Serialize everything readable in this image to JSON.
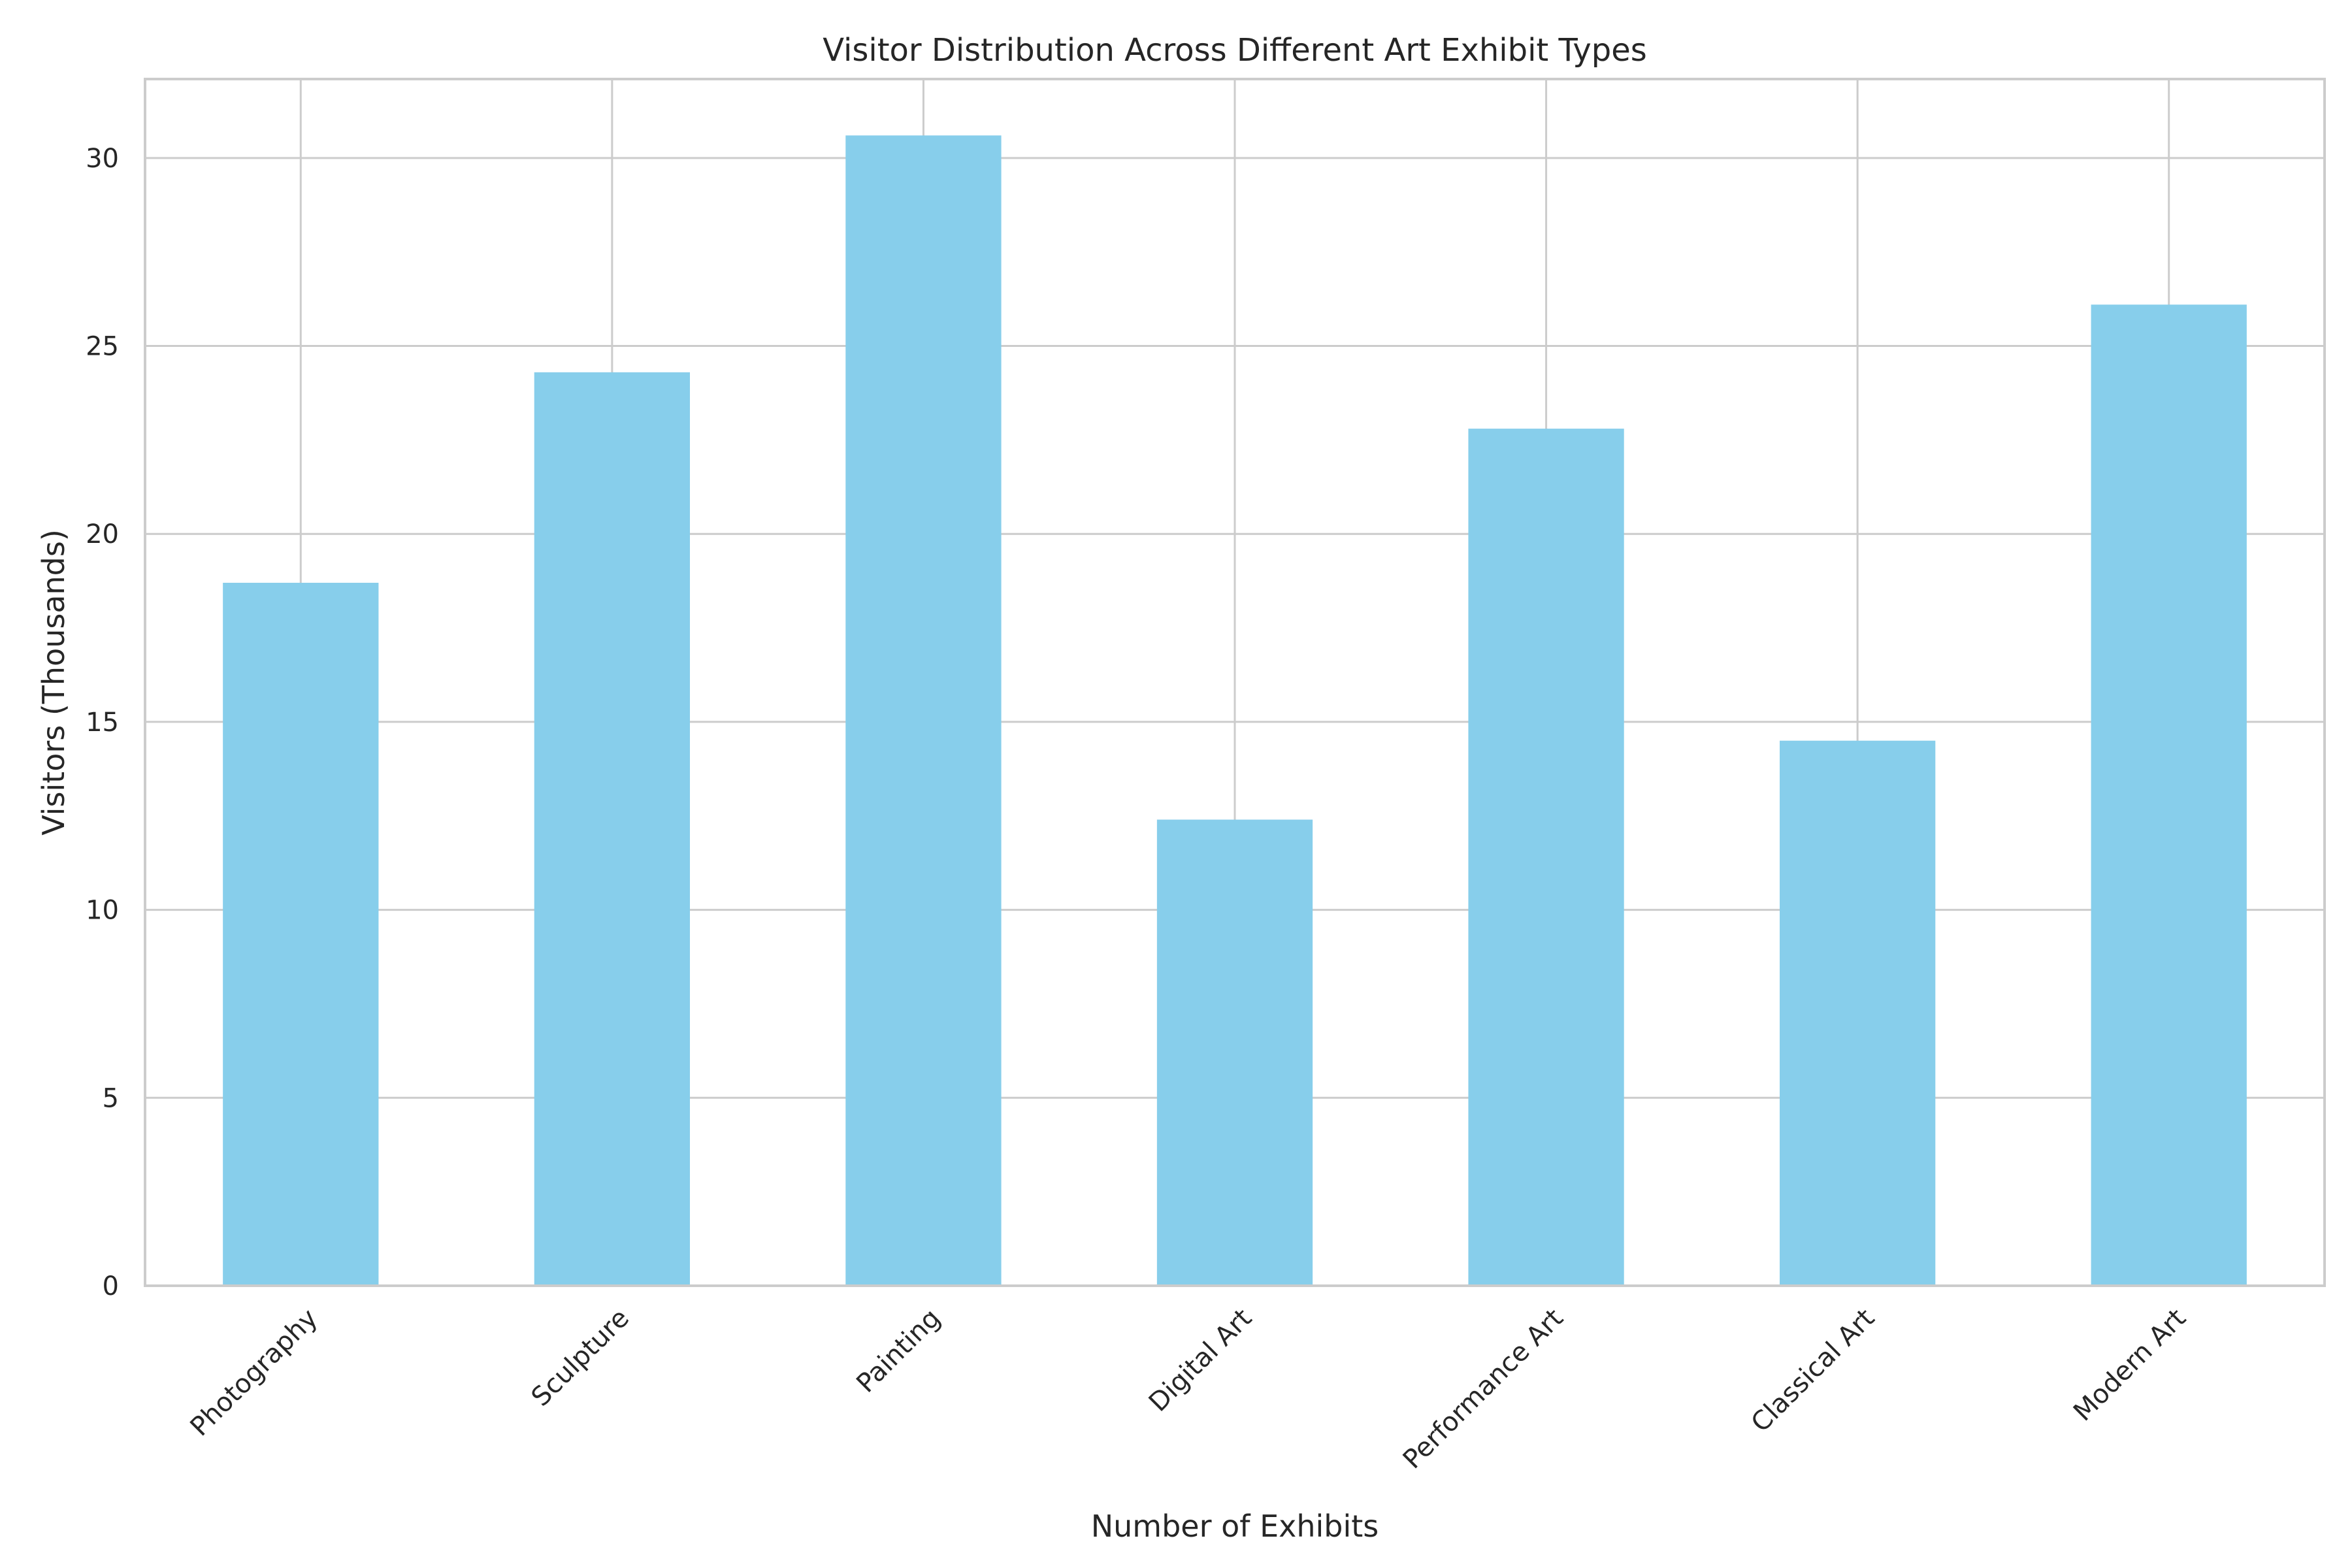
{
  "chart_data": {
    "type": "bar",
    "title": "Visitor Distribution Across Different Art Exhibit Types",
    "xlabel": "Number of Exhibits",
    "ylabel": "Visitors (Thousands)",
    "categories": [
      "Photography",
      "Sculpture",
      "Painting",
      "Digital Art",
      "Performance Art",
      "Classical Art",
      "Modern Art"
    ],
    "values": [
      18.7,
      24.3,
      30.6,
      12.4,
      22.8,
      14.5,
      26.1
    ],
    "ylim": [
      0,
      32.1
    ],
    "yticks": [
      0,
      5,
      10,
      15,
      20,
      25,
      30
    ],
    "grid": true,
    "colors": {
      "bar": "#87CEEB",
      "grid": "#CCCCCC",
      "text": "#262626"
    }
  }
}
